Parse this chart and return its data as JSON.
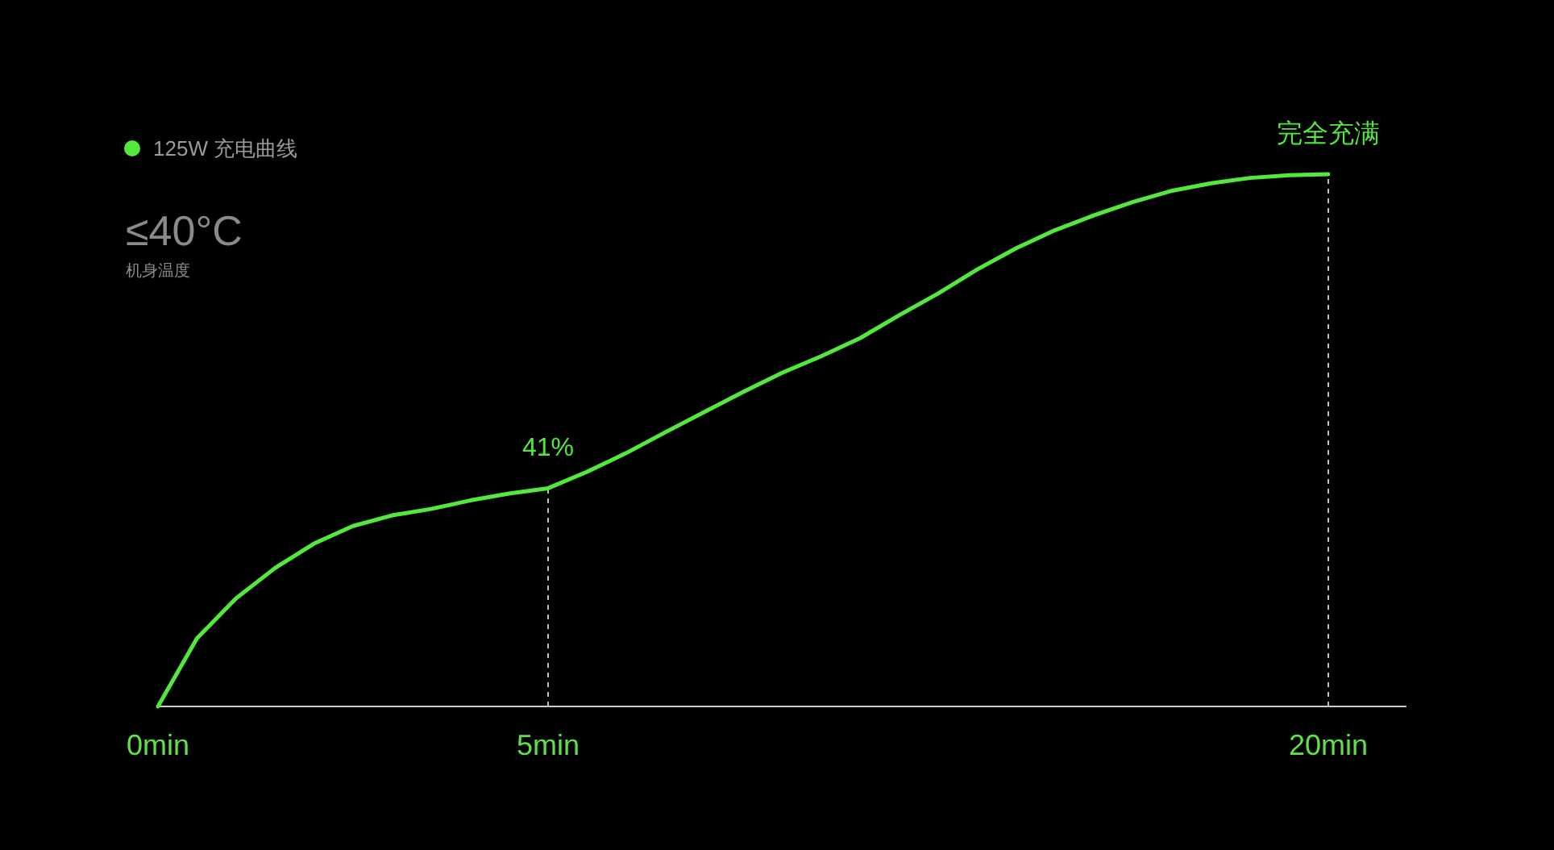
{
  "chart_data": {
    "type": "line",
    "ylim": [
      0,
      100
    ],
    "legend": "top left",
    "categories": [
      "0min",
      null,
      null,
      null,
      null,
      null,
      null,
      null,
      null,
      null,
      "5min",
      null,
      null,
      null,
      null,
      null,
      null,
      null,
      null,
      null,
      null,
      null,
      null,
      null,
      null,
      null,
      null,
      null,
      null,
      null,
      "20min"
    ],
    "series": [
      {
        "name": "125W 充电曲线",
        "color": "#52e83c",
        "values": [
          0,
          12.8,
          20.3,
          26.0,
          30.6,
          33.9,
          35.9,
          37.1,
          38.7,
          40.0,
          41,
          44.1,
          47.6,
          51.5,
          55.3,
          59.1,
          62.7,
          65.8,
          69.2,
          73.5,
          77.6,
          82.1,
          86.1,
          89.5,
          92.3,
          94.8,
          96.9,
          98.3,
          99.3,
          99.8,
          100
        ],
        "value_labels": [
          null,
          null,
          null,
          null,
          null,
          null,
          null,
          null,
          null,
          null,
          "41%",
          null,
          null,
          null,
          null,
          null,
          null,
          null,
          null,
          null,
          null,
          null,
          null,
          null,
          null,
          null,
          null,
          null,
          null,
          null,
          "完全充满"
        ]
      }
    ],
    "ref_lines": [
      {
        "axis": "x",
        "value": "5min",
        "color": "#bbbbbb",
        "line_style": "dashed"
      },
      {
        "axis": "x",
        "value": "20min",
        "color": "#bbbbbb",
        "line_style": "dashed"
      }
    ],
    "annotations": [
      "≤40°C",
      "机身温度"
    ]
  }
}
